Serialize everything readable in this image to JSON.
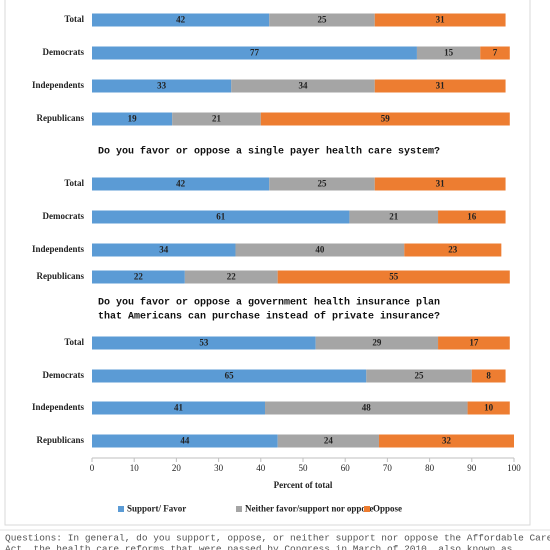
{
  "chart_data": {
    "type": "bar",
    "orientation": "horizontal",
    "stacked": true,
    "series": [
      {
        "name": "Support/ Favor",
        "color": "#5b9bd5"
      },
      {
        "name": "Neither favor/support nor oppose",
        "color": "#a5a5a5"
      },
      {
        "name": "Oppose",
        "color": "#ed7d31"
      }
    ],
    "panels": [
      {
        "categories": [
          "Total",
          "Democrats",
          "Independents",
          "Republicans"
        ],
        "values": [
          [
            42,
            77,
            33,
            19
          ],
          [
            25,
            15,
            34,
            21
          ],
          [
            31,
            7,
            31,
            59
          ]
        ]
      },
      {
        "title": [
          "Do you favor or oppose a single payer health care system?"
        ],
        "categories": [
          "Total",
          "Democrats",
          "Independents",
          "Republicans"
        ],
        "values": [
          [
            42,
            61,
            34,
            22
          ],
          [
            25,
            21,
            40,
            22
          ],
          [
            31,
            16,
            23,
            55
          ]
        ]
      },
      {
        "title": [
          "Do you favor or oppose a government health insurance plan",
          "that Americans can purchase instead of private insurance?"
        ],
        "categories": [
          "Total",
          "Democrats",
          "Independents",
          "Republicans"
        ],
        "values": [
          [
            53,
            65,
            41,
            44
          ],
          [
            29,
            25,
            48,
            24
          ],
          [
            17,
            8,
            10,
            32
          ]
        ]
      }
    ],
    "xlim": [
      0,
      100
    ],
    "xticks": [
      0,
      10,
      20,
      30,
      40,
      50,
      60,
      70,
      80,
      90,
      100
    ],
    "xlabel": "Percent of total",
    "legend": "bottom",
    "footer": [
      "Questions: In general, do you support, oppose, or neither support nor oppose the Affordable Care",
      "Act, the health care reforms that were passed by Congress in March of 2010, also known as"
    ]
  }
}
